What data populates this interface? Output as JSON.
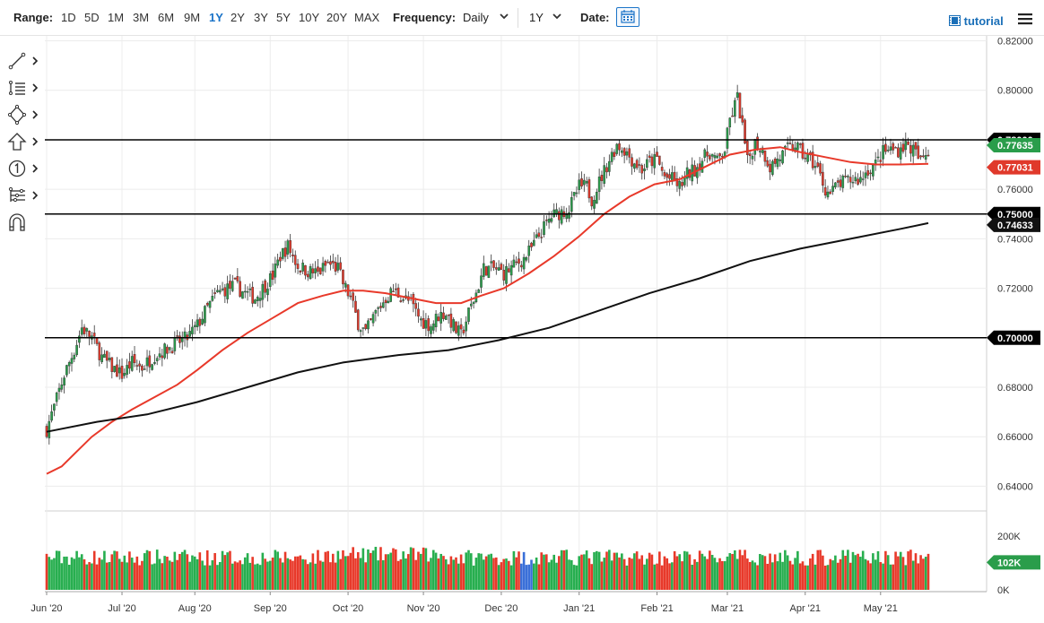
{
  "toolbar": {
    "range_label": "Range:",
    "ranges": [
      "1D",
      "5D",
      "1M",
      "3M",
      "6M",
      "9M",
      "1Y",
      "2Y",
      "3Y",
      "5Y",
      "10Y",
      "20Y",
      "MAX"
    ],
    "active_range": "1Y",
    "frequency_label": "Frequency:",
    "frequency_value": "Daily",
    "period_value": "1Y",
    "date_label": "Date:",
    "tutorial_label": "tutorial"
  },
  "left_tools": [
    "line-draw-icon",
    "indicator-list-icon",
    "shapes-icon",
    "arrow-up-icon",
    "annotation-number-icon",
    "node-tree-icon",
    "magnet-icon"
  ],
  "colors": {
    "up": "#2a9d4b",
    "down": "#e0392b",
    "ma_short": "#e8392a",
    "ma_long": "#111111",
    "volume_up": "#27ae4f",
    "volume_down": "#e8392a",
    "volume_blue": "#3a6fd8"
  },
  "chart_data": {
    "type": "candlestick",
    "symbol_text": "",
    "x_tick_labels": [
      "Jun '20",
      "Jul '20",
      "Aug '20",
      "Sep '20",
      "Oct '20",
      "Nov '20",
      "Dec '20",
      "Jan '21",
      "Feb '21",
      "Mar '21",
      "Apr '21",
      "May '21"
    ],
    "y_tick_labels": [
      "0.82000",
      "0.80000",
      "0.78000",
      "0.76000",
      "0.74000",
      "0.72000",
      "0.70000",
      "0.68000",
      "0.66000",
      "0.64000"
    ],
    "y_range": [
      0.63,
      0.822
    ],
    "horizontal_lines": [
      {
        "value": 0.78,
        "label": "0.78000"
      },
      {
        "value": 0.75,
        "label": "0.75000"
      },
      {
        "value": 0.7,
        "label": "0.70000"
      }
    ],
    "price_badges": [
      {
        "value": 0.77635,
        "label": "0.77635",
        "color": "#2a9d4b"
      },
      {
        "value": 0.77031,
        "label": "0.77031",
        "color": "#e0392b"
      },
      {
        "value": 0.74633,
        "label": "0.74633",
        "color": "#111111"
      }
    ],
    "close_path": [
      [
        0,
        0.663
      ],
      [
        3,
        0.672
      ],
      [
        7,
        0.685
      ],
      [
        11,
        0.695
      ],
      [
        14,
        0.704
      ],
      [
        18,
        0.7
      ],
      [
        22,
        0.692
      ],
      [
        26,
        0.688
      ],
      [
        30,
        0.685
      ],
      [
        34,
        0.69
      ],
      [
        38,
        0.688
      ],
      [
        43,
        0.693
      ],
      [
        47,
        0.695
      ],
      [
        52,
        0.698
      ],
      [
        56,
        0.7
      ],
      [
        60,
        0.705
      ],
      [
        64,
        0.712
      ],
      [
        68,
        0.718
      ],
      [
        72,
        0.72
      ],
      [
        75,
        0.721
      ],
      [
        79,
        0.718
      ],
      [
        83,
        0.716
      ],
      [
        86,
        0.72
      ],
      [
        90,
        0.725
      ],
      [
        93,
        0.733
      ],
      [
        96,
        0.737
      ],
      [
        100,
        0.729
      ],
      [
        104,
        0.727
      ],
      [
        108,
        0.726
      ],
      [
        112,
        0.73
      ],
      [
        116,
        0.728
      ],
      [
        118,
        0.722
      ],
      [
        121,
        0.716
      ],
      [
        124,
        0.706
      ],
      [
        127,
        0.702
      ],
      [
        131,
        0.71
      ],
      [
        135,
        0.716
      ],
      [
        138,
        0.719
      ],
      [
        141,
        0.717
      ],
      [
        145,
        0.714
      ],
      [
        149,
        0.707
      ],
      [
        153,
        0.705
      ],
      [
        156,
        0.709
      ],
      [
        159,
        0.71
      ],
      [
        163,
        0.703
      ],
      [
        165,
        0.701
      ],
      [
        168,
        0.71
      ],
      [
        171,
        0.718
      ],
      [
        174,
        0.728
      ],
      [
        178,
        0.728
      ],
      [
        182,
        0.726
      ],
      [
        186,
        0.729
      ],
      [
        190,
        0.732
      ],
      [
        193,
        0.736
      ],
      [
        197,
        0.743
      ],
      [
        201,
        0.749
      ],
      [
        205,
        0.751
      ],
      [
        208,
        0.752
      ],
      [
        212,
        0.761
      ],
      [
        215,
        0.761
      ],
      [
        217,
        0.756
      ],
      [
        220,
        0.763
      ],
      [
        224,
        0.772
      ],
      [
        227,
        0.778
      ],
      [
        230,
        0.776
      ],
      [
        233,
        0.772
      ],
      [
        237,
        0.768
      ],
      [
        240,
        0.771
      ],
      [
        243,
        0.772
      ],
      [
        246,
        0.765
      ],
      [
        249,
        0.764
      ],
      [
        252,
        0.761
      ],
      [
        255,
        0.766
      ],
      [
        258,
        0.768
      ],
      [
        261,
        0.772
      ],
      [
        264,
        0.775
      ],
      [
        267,
        0.771
      ],
      [
        270,
        0.776
      ],
      [
        272,
        0.788
      ],
      [
        275,
        0.797
      ],
      [
        277,
        0.785
      ],
      [
        279,
        0.771
      ],
      [
        282,
        0.779
      ],
      [
        285,
        0.776
      ],
      [
        288,
        0.769
      ],
      [
        291,
        0.772
      ],
      [
        295,
        0.776
      ],
      [
        298,
        0.778
      ],
      [
        301,
        0.774
      ],
      [
        304,
        0.772
      ],
      [
        307,
        0.768
      ],
      [
        310,
        0.76
      ],
      [
        312,
        0.758
      ],
      [
        315,
        0.762
      ],
      [
        318,
        0.763
      ],
      [
        321,
        0.764
      ],
      [
        324,
        0.764
      ],
      [
        327,
        0.768
      ],
      [
        330,
        0.77
      ],
      [
        333,
        0.775
      ],
      [
        336,
        0.776
      ],
      [
        339,
        0.776
      ],
      [
        342,
        0.778
      ],
      [
        345,
        0.776
      ],
      [
        348,
        0.771
      ],
      [
        351,
        0.776
      ]
    ],
    "ma_short_path": [
      [
        0,
        0.645
      ],
      [
        6,
        0.648
      ],
      [
        12,
        0.654
      ],
      [
        18,
        0.66
      ],
      [
        26,
        0.666
      ],
      [
        34,
        0.671
      ],
      [
        43,
        0.676
      ],
      [
        52,
        0.681
      ],
      [
        60,
        0.687
      ],
      [
        70,
        0.695
      ],
      [
        80,
        0.702
      ],
      [
        90,
        0.708
      ],
      [
        100,
        0.714
      ],
      [
        110,
        0.717
      ],
      [
        118,
        0.719
      ],
      [
        126,
        0.719
      ],
      [
        135,
        0.718
      ],
      [
        145,
        0.716
      ],
      [
        155,
        0.714
      ],
      [
        165,
        0.714
      ],
      [
        173,
        0.717
      ],
      [
        182,
        0.72
      ],
      [
        192,
        0.726
      ],
      [
        202,
        0.733
      ],
      [
        212,
        0.741
      ],
      [
        222,
        0.75
      ],
      [
        232,
        0.757
      ],
      [
        242,
        0.762
      ],
      [
        252,
        0.764
      ],
      [
        262,
        0.769
      ],
      [
        272,
        0.774
      ],
      [
        282,
        0.776
      ],
      [
        292,
        0.777
      ],
      [
        300,
        0.775
      ],
      [
        310,
        0.773
      ],
      [
        320,
        0.771
      ],
      [
        330,
        0.77
      ],
      [
        340,
        0.77
      ],
      [
        351,
        0.77031
      ]
    ],
    "ma_long_path": [
      [
        0,
        0.662
      ],
      [
        20,
        0.666
      ],
      [
        40,
        0.669
      ],
      [
        60,
        0.674
      ],
      [
        80,
        0.68
      ],
      [
        100,
        0.686
      ],
      [
        118,
        0.69
      ],
      [
        140,
        0.693
      ],
      [
        160,
        0.695
      ],
      [
        180,
        0.699
      ],
      [
        200,
        0.704
      ],
      [
        220,
        0.711
      ],
      [
        240,
        0.718
      ],
      [
        260,
        0.724
      ],
      [
        280,
        0.731
      ],
      [
        300,
        0.736
      ],
      [
        320,
        0.74
      ],
      [
        340,
        0.744
      ],
      [
        351,
        0.74633
      ]
    ],
    "volume_axis_labels": [
      "200K",
      "0K"
    ],
    "volume_range": [
      0,
      260
    ],
    "volume_badge": {
      "value": 102,
      "label": "102K",
      "color": "#2a9d4b"
    }
  }
}
